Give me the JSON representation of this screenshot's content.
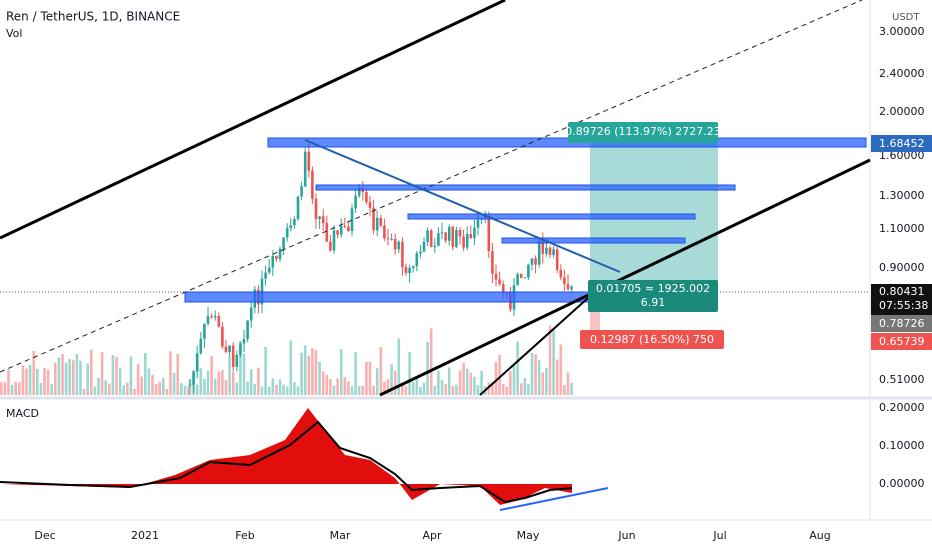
{
  "header": {
    "title": "Ren / TetherUS, 1D, BINANCE",
    "volume": "Vol",
    "currency": "USDT"
  },
  "price_axis": [
    "3.00000",
    "2.40000",
    "2.00000",
    "1.60000",
    "1.30000",
    "1.10000",
    "0.90000",
    "0.51000"
  ],
  "price_tags": {
    "target": "1.68452",
    "last": "0.80431",
    "countdown": "07:55:38",
    "entry": "0.78726",
    "stop": "0.65739"
  },
  "macd": {
    "label": "MACD",
    "axis": [
      "0.20000",
      "0.10000",
      "0.00000"
    ]
  },
  "time_axis": [
    "Dec",
    "2021",
    "Feb",
    "Mar",
    "Apr",
    "May",
    "Jun",
    "Jul",
    "Aug"
  ],
  "position": {
    "profit": "0.89726 (113.97%) 2727.23",
    "ratio": "0.01705 ≈ 1925.002",
    "rr": "6.91",
    "loss": "0.12987 (16.50%) 750"
  }
}
